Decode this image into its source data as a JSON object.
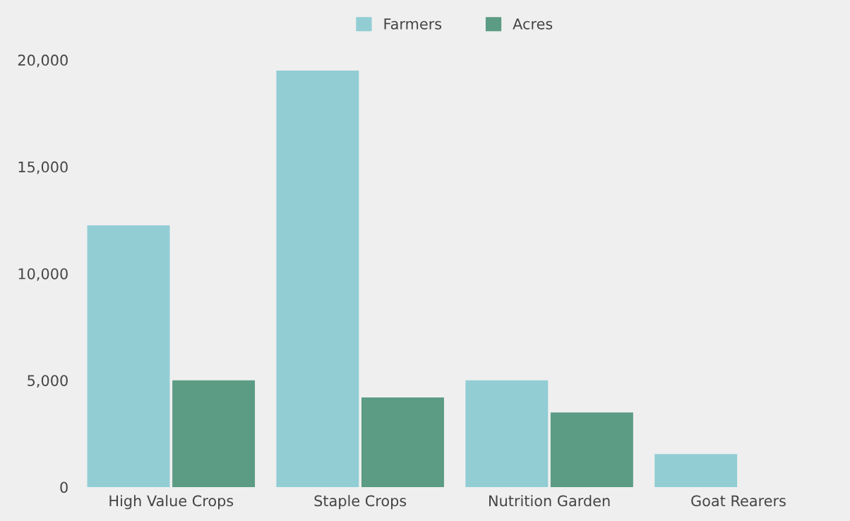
{
  "chart_data": {
    "type": "bar",
    "categories": [
      "High Value Crops",
      "Staple Crops",
      "Nutrition Garden",
      "Goat Rearers"
    ],
    "series": [
      {
        "name": "Farmers",
        "color": "#92cdd4",
        "values": [
          12250,
          19500,
          5000,
          1550
        ]
      },
      {
        "name": "Acres",
        "color": "#5c9b84",
        "values": [
          5000,
          4200,
          3500,
          null
        ]
      }
    ],
    "ylim": [
      0,
      20000
    ],
    "yticks": [
      {
        "value": 0,
        "label": "0"
      },
      {
        "value": 5000,
        "label": "5,000"
      },
      {
        "value": 10000,
        "label": "10,000"
      },
      {
        "value": 15000,
        "label": "15,000"
      },
      {
        "value": 20000,
        "label": "20,000"
      }
    ],
    "legend": "top"
  }
}
